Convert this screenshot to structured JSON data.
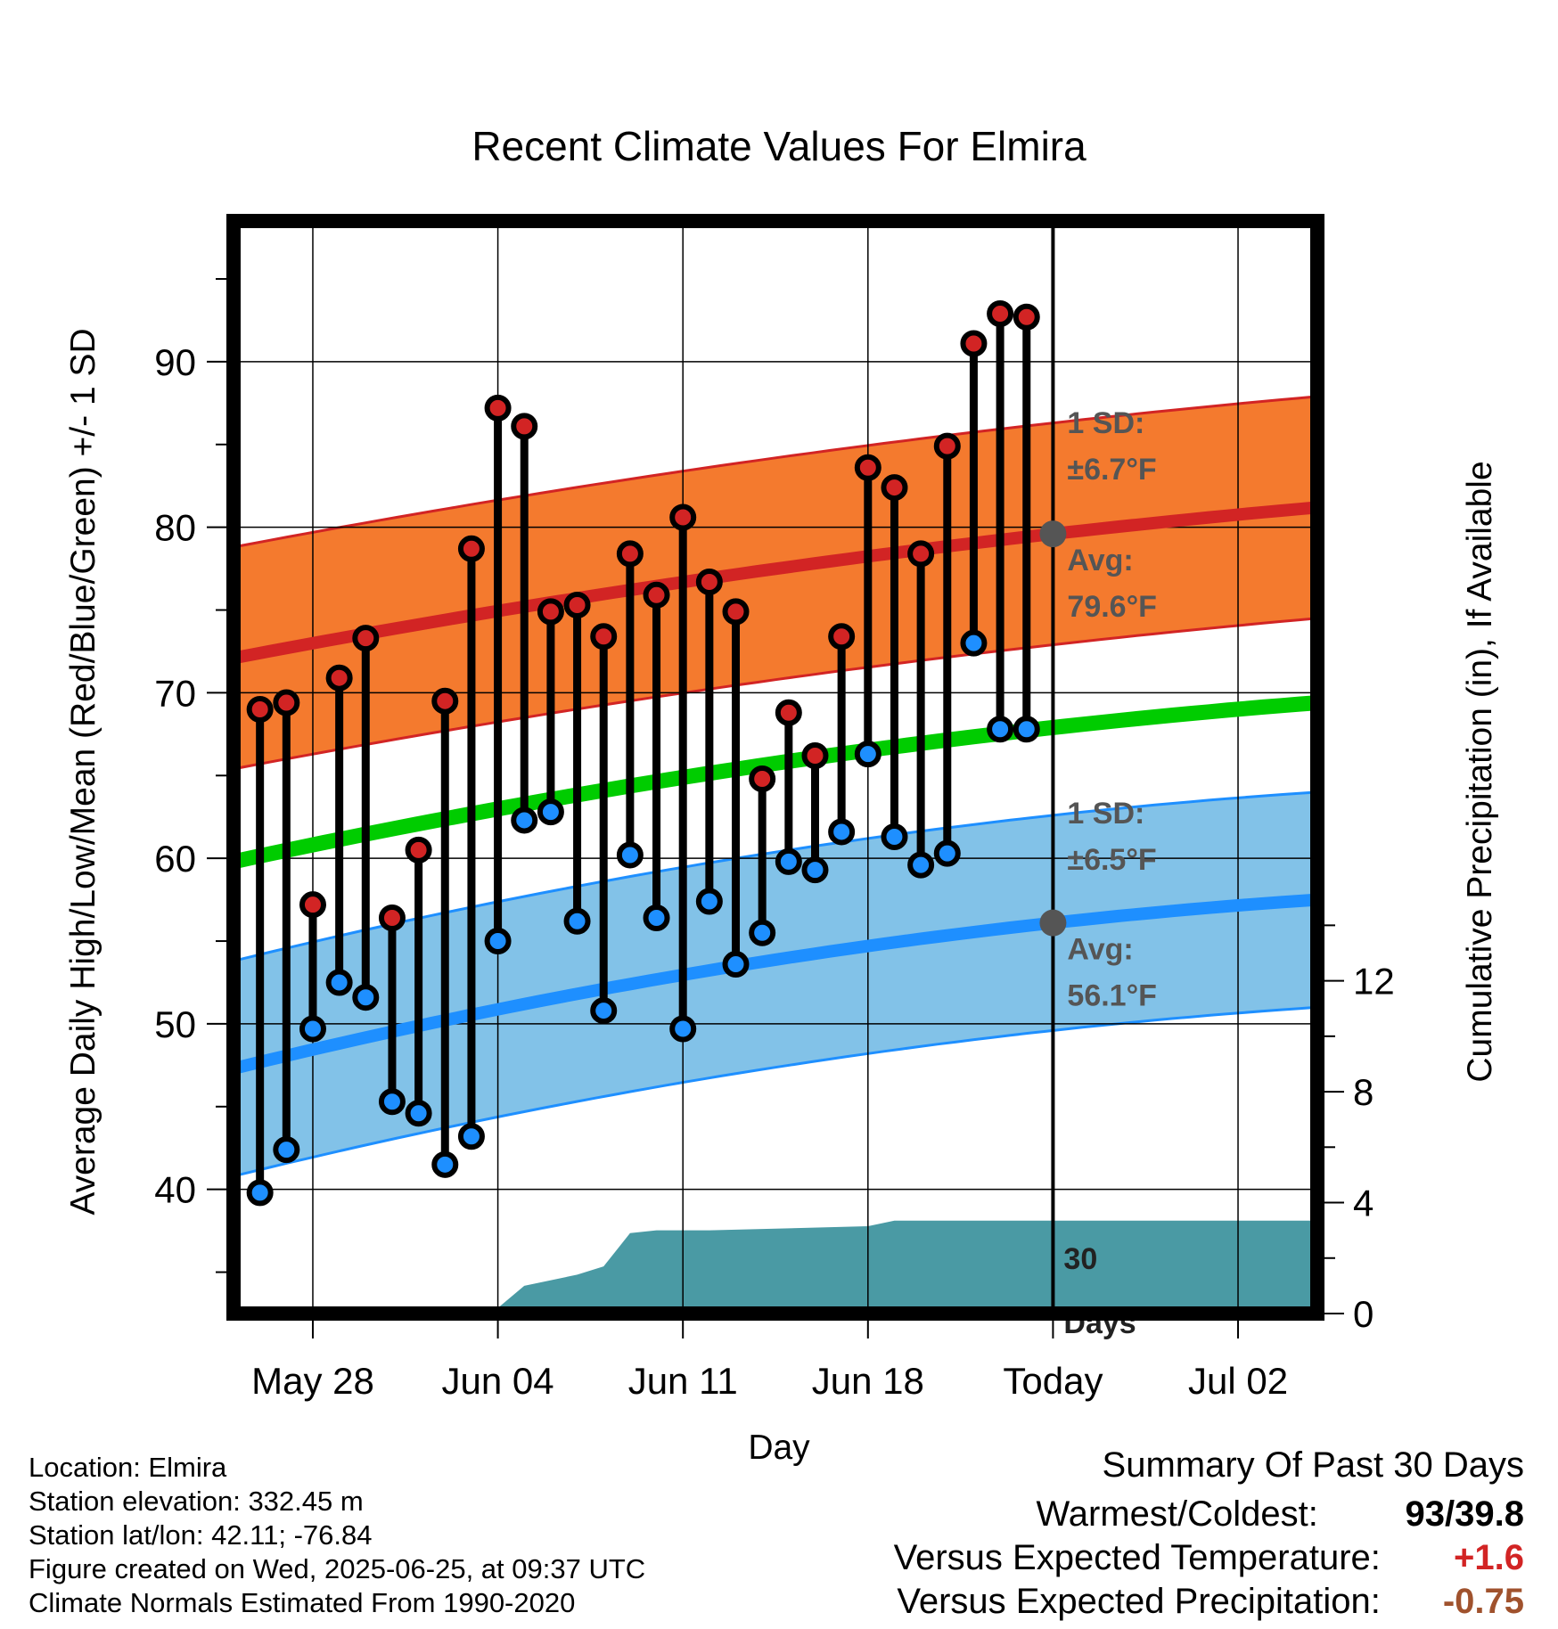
{
  "chart_data": {
    "type": "line",
    "title": "Recent Climate Values For Elmira",
    "xlabel": "Day",
    "ylabel_left": "Average Daily High/Low/Mean (Red/Blue/Green) +/- 1 SD",
    "ylabel_right": "Cumulative Precipitation (in), If Available",
    "x_tick_labels": [
      "May 28",
      "Jun 04",
      "Jun 11",
      "Jun 18",
      "Today",
      "Jul 02"
    ],
    "x_tick_dates": [
      "2025-05-28",
      "2025-06-04",
      "2025-06-11",
      "2025-06-18",
      "2025-06-25",
      "2025-07-02"
    ],
    "x_range": [
      "2025-05-25",
      "2025-07-05"
    ],
    "ylim_left": [
      32.5,
      98.5
    ],
    "ylim_right": [
      0,
      39.4
    ],
    "y_ticks_left": [
      40,
      50,
      60,
      70,
      80,
      90
    ],
    "y_ticks_right": [
      0,
      4,
      8,
      12
    ],
    "grid": true,
    "dates": [
      "2025-05-26",
      "2025-05-27",
      "2025-05-28",
      "2025-05-29",
      "2025-05-30",
      "2025-05-31",
      "2025-06-01",
      "2025-06-02",
      "2025-06-03",
      "2025-06-04",
      "2025-06-05",
      "2025-06-06",
      "2025-06-07",
      "2025-06-08",
      "2025-06-09",
      "2025-06-10",
      "2025-06-11",
      "2025-06-12",
      "2025-06-13",
      "2025-06-14",
      "2025-06-15",
      "2025-06-16",
      "2025-06-17",
      "2025-06-18",
      "2025-06-19",
      "2025-06-20",
      "2025-06-21",
      "2025-06-22",
      "2025-06-23",
      "2025-06-24"
    ],
    "series": [
      {
        "name": "High",
        "values": [
          69,
          69.4,
          57.2,
          70.9,
          73.3,
          56.4,
          60.5,
          69.5,
          78.7,
          87.2,
          86.1,
          74.9,
          75.3,
          73.4,
          78.4,
          75.9,
          80.6,
          76.7,
          74.9,
          64.8,
          68.8,
          66.2,
          73.4,
          83.6,
          82.4,
          78.4,
          84.9,
          91.1,
          92.9,
          92.7
        ]
      },
      {
        "name": "Low",
        "values": [
          39.8,
          42.4,
          49.7,
          52.5,
          51.6,
          45.3,
          44.6,
          41.5,
          43.2,
          55,
          62.3,
          62.8,
          56.2,
          50.8,
          60.2,
          56.4,
          49.7,
          57.4,
          53.6,
          55.5,
          59.8,
          59.3,
          61.6,
          66.3,
          61.3,
          59.6,
          60.3,
          73,
          67.8,
          67.8
        ]
      }
    ],
    "normals": {
      "dates": [
        "2025-05-25",
        "2025-06-25",
        "2025-07-05"
      ],
      "avg_high": [
        72.1,
        79.6,
        81.2
      ],
      "avg_low": [
        47.3,
        56.1,
        57.5
      ],
      "avg_mean": [
        59.8,
        67.9,
        69.4
      ],
      "high_sd": 6.7,
      "low_sd": 6.5
    },
    "precipitation": {
      "dates": [
        "2025-05-28",
        "2025-05-31",
        "2025-06-04",
        "2025-06-05",
        "2025-06-07",
        "2025-06-08",
        "2025-06-09",
        "2025-06-10",
        "2025-06-12",
        "2025-06-14",
        "2025-06-18",
        "2025-06-19",
        "2025-07-05"
      ],
      "cumulative_in": [
        0.05,
        0.2,
        0.2,
        1.0,
        1.4,
        1.7,
        2.9,
        3.0,
        3.0,
        3.05,
        3.15,
        3.35,
        3.35
      ]
    },
    "annotations": {
      "high_sd_label": "1 SD:",
      "high_sd_value": "±6.7°F",
      "high_avg_label": "Avg:",
      "high_avg_value": "79.6°F",
      "low_sd_label": "1 SD:",
      "low_sd_value": "±6.5°F",
      "low_avg_label": "Avg:",
      "low_avg_value": "56.1°F",
      "window_count": "30",
      "window_unit": "Days"
    },
    "colors": {
      "high": "#d22424",
      "low": "#1e8fff",
      "mean": "#00cc00",
      "high_band": "#f47a2e",
      "low_band": "#82c2e8",
      "precip": "#4a9aa4",
      "avg_marker": "#555555"
    }
  },
  "footer": {
    "location": "Location: Elmira",
    "elevation": "Station elevation: 332.45 m",
    "latlon": "Station lat/lon: 42.11; -76.84",
    "created": "Figure created on Wed, 2025-06-25, at 09:37 UTC",
    "normals": "Climate Normals Estimated From 1990-2020"
  },
  "summary": {
    "heading": "Summary Of Past 30 Days",
    "warm_cold_label": "Warmest/Coldest:",
    "warmest": "93",
    "separator": "/",
    "coldest": "39.8",
    "temp_label": "Versus Expected Temperature:",
    "temp_value": "+1.6",
    "precip_label": "Versus Expected Precipitation:",
    "precip_value": "-0.75",
    "temp_color": "#d22424",
    "precip_color": "#a0522d"
  }
}
